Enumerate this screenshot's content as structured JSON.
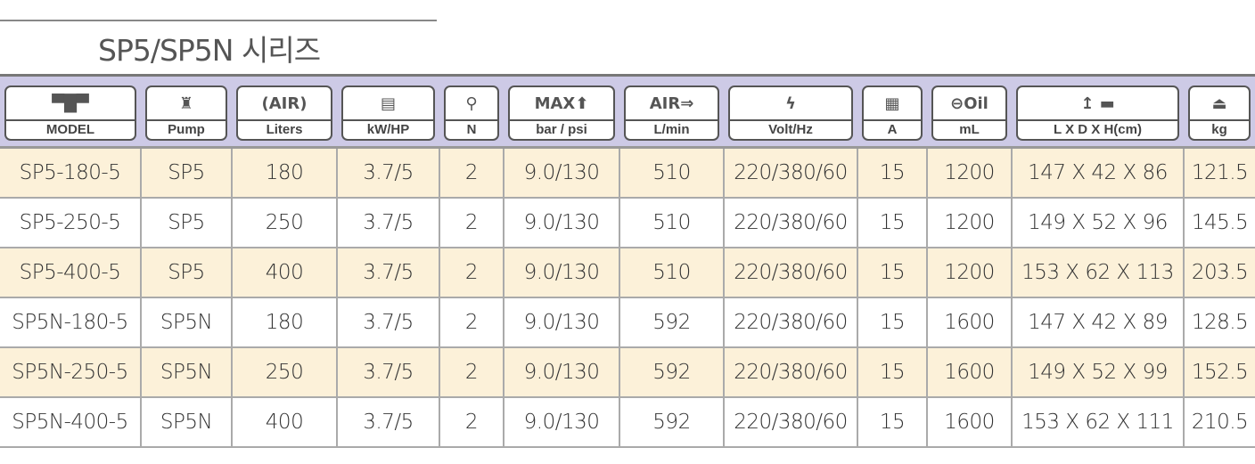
{
  "title": "SP5/SP5N 시리즈",
  "headers": [
    {
      "label": "MODEL",
      "icon": "compressor-icon",
      "glyph": "▀█▀"
    },
    {
      "label": "Pump",
      "icon": "pump-icon",
      "glyph": "♜"
    },
    {
      "label": "Liters",
      "icon": "air-tank-icon",
      "glyph": "(AIR)"
    },
    {
      "label": "kW/HP",
      "icon": "motor-icon",
      "glyph": "▤"
    },
    {
      "label": "N",
      "icon": "piston-icon",
      "glyph": "⚲"
    },
    {
      "label": "bar / psi",
      "icon": "max-pressure-icon",
      "glyph": "MAX⬆"
    },
    {
      "label": "L/min",
      "icon": "air-flow-icon",
      "glyph": "AIR⇒"
    },
    {
      "label": "Volt/Hz",
      "icon": "lightning-icon",
      "glyph": "ϟ"
    },
    {
      "label": "A",
      "icon": "current-icon",
      "glyph": "▦"
    },
    {
      "label": "mL",
      "icon": "oil-icon",
      "glyph": "⊖Oil"
    },
    {
      "label": "L X D X H(cm)",
      "icon": "dimensions-icon",
      "glyph": "↥ ▬"
    },
    {
      "label": "kg",
      "icon": "weight-icon",
      "glyph": "⏏"
    }
  ],
  "rows": [
    [
      "SP5-180-5",
      "SP5",
      "180",
      "3.7/5",
      "2",
      "9.0/130",
      "510",
      "220/380/60",
      "15",
      "1200",
      "147 X 42 X 86",
      "121.5"
    ],
    [
      "SP5-250-5",
      "SP5",
      "250",
      "3.7/5",
      "2",
      "9.0/130",
      "510",
      "220/380/60",
      "15",
      "1200",
      "149 X 52 X 96",
      "145.5"
    ],
    [
      "SP5-400-5",
      "SP5",
      "400",
      "3.7/5",
      "2",
      "9.0/130",
      "510",
      "220/380/60",
      "15",
      "1200",
      "153 X 62 X 113",
      "203.5"
    ],
    [
      "SP5N-180-5",
      "SP5N",
      "180",
      "3.7/5",
      "2",
      "9.0/130",
      "592",
      "220/380/60",
      "15",
      "1600",
      "147 X 42 X 89",
      "128.5"
    ],
    [
      "SP5N-250-5",
      "SP5N",
      "250",
      "3.7/5",
      "2",
      "9.0/130",
      "592",
      "220/380/60",
      "15",
      "1600",
      "149 X 52 X 99",
      "152.5"
    ],
    [
      "SP5N-400-5",
      "SP5N",
      "400",
      "3.7/5",
      "2",
      "9.0/130",
      "592",
      "220/380/60",
      "15",
      "1600",
      "153 X 62 X 111",
      "210.5"
    ]
  ]
}
